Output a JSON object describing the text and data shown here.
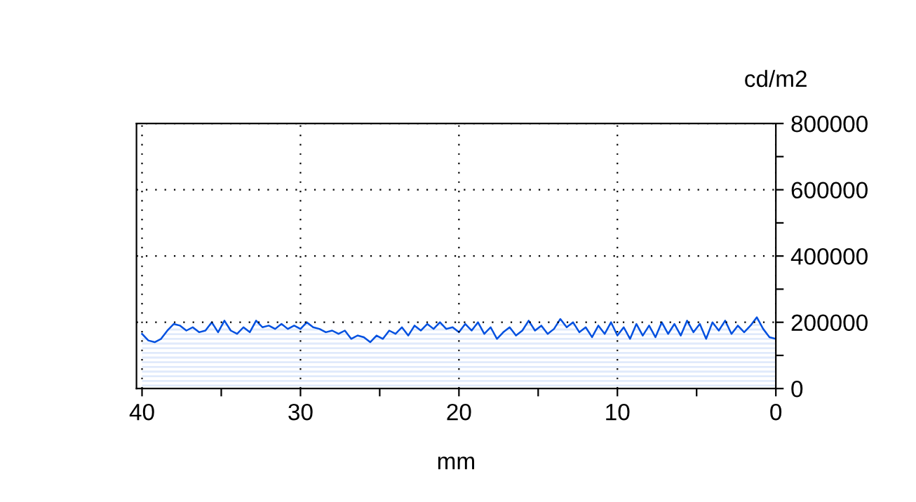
{
  "chart_data": {
    "type": "area",
    "xlabel": "mm",
    "ylabel": "cd/m2",
    "x": [
      40.0,
      39.6,
      39.2,
      38.8,
      38.4,
      38.0,
      37.6,
      37.2,
      36.8,
      36.4,
      36.0,
      35.6,
      35.2,
      34.8,
      34.4,
      34.0,
      33.6,
      33.2,
      32.8,
      32.4,
      32.0,
      31.6,
      31.2,
      30.8,
      30.4,
      30.0,
      29.6,
      29.2,
      28.8,
      28.4,
      28.0,
      27.6,
      27.2,
      26.8,
      26.4,
      26.0,
      25.6,
      25.2,
      24.8,
      24.4,
      24.0,
      23.6,
      23.2,
      22.8,
      22.4,
      22.0,
      21.6,
      21.2,
      20.8,
      20.4,
      20.0,
      19.6,
      19.2,
      18.8,
      18.4,
      18.0,
      17.6,
      17.2,
      16.8,
      16.4,
      16.0,
      15.6,
      15.2,
      14.8,
      14.4,
      14.0,
      13.6,
      13.2,
      12.8,
      12.4,
      12.0,
      11.6,
      11.2,
      10.8,
      10.4,
      10.0,
      9.6,
      9.2,
      8.8,
      8.4,
      8.0,
      7.6,
      7.2,
      6.8,
      6.4,
      6.0,
      5.6,
      5.2,
      4.8,
      4.4,
      4.0,
      3.6,
      3.2,
      2.8,
      2.4,
      2.0,
      1.6,
      1.2,
      0.8,
      0.4,
      0.0
    ],
    "series": [
      {
        "color": "#0050e0",
        "values": [
          165000,
          145000,
          140000,
          150000,
          175000,
          195000,
          190000,
          175000,
          185000,
          170000,
          175000,
          200000,
          170000,
          205000,
          175000,
          165000,
          185000,
          170000,
          205000,
          185000,
          190000,
          180000,
          195000,
          180000,
          190000,
          180000,
          200000,
          185000,
          180000,
          170000,
          175000,
          165000,
          175000,
          150000,
          160000,
          155000,
          140000,
          160000,
          150000,
          175000,
          165000,
          185000,
          160000,
          190000,
          175000,
          195000,
          180000,
          200000,
          180000,
          185000,
          170000,
          195000,
          175000,
          200000,
          165000,
          185000,
          150000,
          170000,
          185000,
          160000,
          175000,
          205000,
          175000,
          190000,
          165000,
          180000,
          210000,
          185000,
          200000,
          170000,
          185000,
          155000,
          190000,
          165000,
          200000,
          160000,
          185000,
          150000,
          195000,
          160000,
          190000,
          155000,
          200000,
          165000,
          195000,
          160000,
          205000,
          170000,
          195000,
          150000,
          200000,
          175000,
          205000,
          165000,
          190000,
          170000,
          190000,
          215000,
          180000,
          155000,
          150000
        ]
      }
    ],
    "xlim": [
      40.35,
      0
    ],
    "ylim": [
      0,
      800000
    ],
    "xticks": [
      40,
      {
        "value": 35,
        "label": null
      },
      30,
      {
        "value": 25,
        "label": null
      },
      20,
      {
        "value": 15,
        "label": null
      },
      10,
      {
        "value": 5,
        "label": null
      },
      0
    ],
    "yticks": [
      0,
      {
        "value": 100000,
        "label": null
      },
      200000,
      {
        "value": 300000,
        "label": null
      },
      400000,
      {
        "value": 500000,
        "label": null
      },
      600000,
      {
        "value": 700000,
        "label": null
      },
      800000
    ],
    "grid": true
  }
}
